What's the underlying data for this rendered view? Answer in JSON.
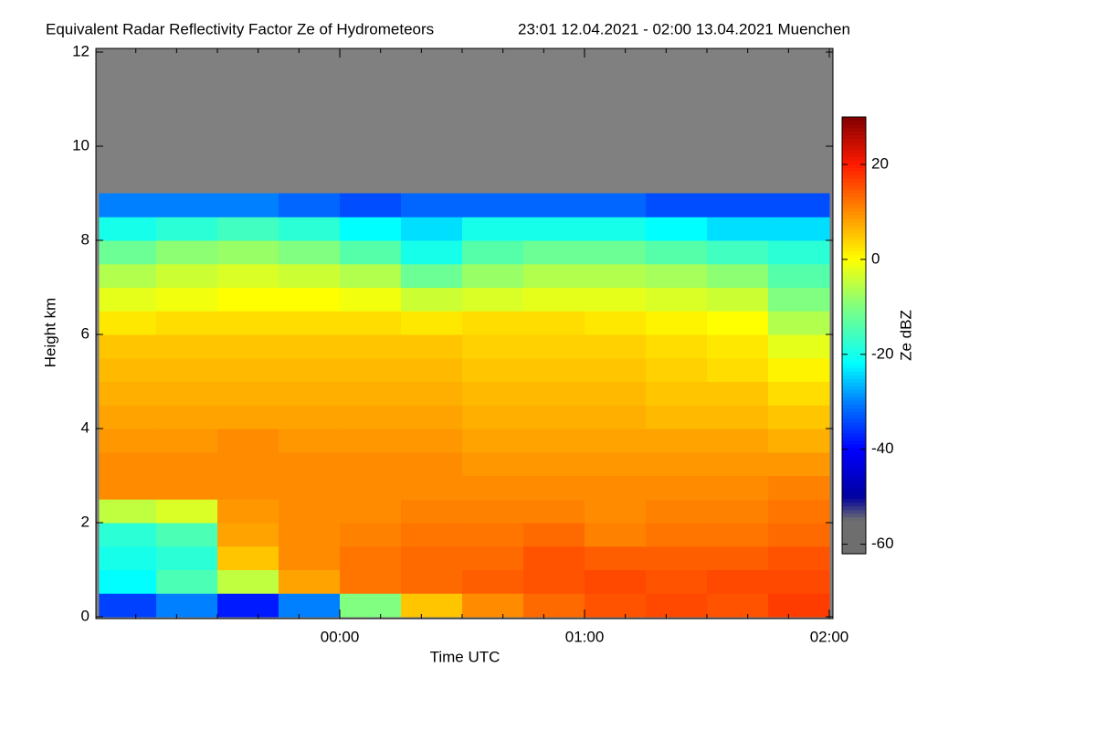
{
  "chart_data": {
    "type": "heatmap",
    "title": "Equivalent Radar Reflectivity Factor Ze of Hydrometeors",
    "subtitle": "23:01 12.04.2021 - 02:00 13.04.2021 Muenchen",
    "x_label": "Time UTC",
    "y_label": "Height km",
    "colorbar_label": "Ze dBZ",
    "xlim": [
      23.0167,
      26.0
    ],
    "xticks": [
      {
        "value": 24,
        "label": "00:00"
      },
      {
        "value": 25,
        "label": "01:00"
      },
      {
        "value": 26,
        "label": "02:00"
      }
    ],
    "xminorticks": [
      23.1667,
      23.3333,
      23.5,
      23.6667,
      23.8333,
      24.1667,
      24.3333,
      24.5,
      24.6667,
      24.8333,
      25.1667,
      25.3333,
      25.5,
      25.6667,
      25.8333
    ],
    "ylim": [
      0,
      12
    ],
    "yticks": [
      0,
      2,
      4,
      6,
      8,
      10,
      12
    ],
    "zlim": [
      -62,
      30
    ],
    "zticks": [
      -60,
      -40,
      -20,
      0,
      20
    ],
    "missing_color": "#808080",
    "colormap": [
      [
        -62,
        "#6e6e6e"
      ],
      [
        -55,
        "#6e6e6e"
      ],
      [
        -50,
        "#0000a0"
      ],
      [
        -40,
        "#0000ff"
      ],
      [
        -30,
        "#0080ff"
      ],
      [
        -22,
        "#00ffff"
      ],
      [
        -10,
        "#80ff80"
      ],
      [
        0,
        "#ffff00"
      ],
      [
        10,
        "#ff8c00"
      ],
      [
        20,
        "#ff1a00"
      ],
      [
        30,
        "#800000"
      ]
    ],
    "xbins": [
      23.0167,
      23.25,
      23.5,
      23.75,
      24.0,
      24.25,
      24.5,
      24.75,
      25.0,
      25.25,
      25.5,
      25.75,
      26.0
    ],
    "ybins": [
      0,
      0.5,
      1,
      1.5,
      2,
      2.5,
      3,
      3.5,
      4,
      4.5,
      5,
      5.5,
      6,
      6.5,
      7,
      7.5,
      8,
      8.5,
      9,
      9.5,
      10,
      10.5,
      11,
      11.5,
      12
    ],
    "z": [
      [
        -35,
        -30,
        -38,
        -30,
        -10,
        5,
        10,
        13,
        15,
        16,
        15,
        17
      ],
      [
        -22,
        -15,
        -5,
        8,
        12,
        13,
        14,
        15,
        16,
        15,
        16,
        16
      ],
      [
        -20,
        -18,
        5,
        10,
        12,
        13,
        13,
        15,
        14,
        14,
        14,
        15
      ],
      [
        -18,
        -15,
        8,
        10,
        11,
        12,
        12,
        13,
        11,
        12,
        12,
        13
      ],
      [
        -5,
        -3,
        9,
        10,
        10,
        11,
        11,
        11,
        10,
        11,
        11,
        12
      ],
      [
        10,
        10,
        10,
        10,
        10,
        10,
        10,
        10,
        10,
        10,
        10,
        11
      ],
      [
        10,
        10,
        10,
        10,
        10,
        10,
        9,
        9,
        9,
        9,
        9,
        9
      ],
      [
        9,
        9,
        10,
        9,
        9,
        9,
        8,
        8,
        8,
        8,
        8,
        7
      ],
      [
        8,
        8,
        8,
        8,
        8,
        8,
        7,
        7,
        7,
        6,
        6,
        5
      ],
      [
        7,
        7,
        7,
        7,
        7,
        7,
        6,
        6,
        6,
        5,
        5,
        3
      ],
      [
        6,
        6,
        6,
        6,
        6,
        6,
        5,
        5,
        5,
        4,
        3,
        1
      ],
      [
        5,
        5,
        5,
        5,
        5,
        5,
        4,
        4,
        4,
        3,
        2,
        -2
      ],
      [
        2,
        3,
        3,
        3,
        3,
        2,
        3,
        3,
        2,
        1,
        0,
        -6
      ],
      [
        -2,
        -1,
        0,
        0,
        -1,
        -4,
        -3,
        -2,
        -2,
        -3,
        -4,
        -10
      ],
      [
        -6,
        -4,
        -3,
        -4,
        -6,
        -12,
        -8,
        -6,
        -6,
        -7,
        -9,
        -14
      ],
      [
        -12,
        -9,
        -8,
        -10,
        -14,
        -20,
        -14,
        -12,
        -12,
        -14,
        -16,
        -18
      ],
      [
        -20,
        -18,
        -16,
        -18,
        -22,
        -24,
        -20,
        -20,
        -20,
        -22,
        -24,
        -24
      ],
      [
        -30,
        -30,
        -30,
        -32,
        -34,
        -32,
        -32,
        -32,
        -32,
        -34,
        -34,
        -34
      ],
      [
        null,
        null,
        null,
        null,
        null,
        null,
        null,
        null,
        null,
        null,
        null,
        null
      ],
      [
        null,
        null,
        null,
        null,
        null,
        null,
        null,
        null,
        null,
        null,
        null,
        null
      ],
      [
        null,
        null,
        null,
        null,
        null,
        null,
        null,
        null,
        null,
        null,
        null,
        null
      ],
      [
        null,
        null,
        null,
        null,
        null,
        null,
        null,
        null,
        null,
        null,
        null,
        null
      ],
      [
        null,
        null,
        null,
        null,
        null,
        null,
        null,
        null,
        null,
        null,
        null,
        null
      ],
      [
        null,
        null,
        null,
        null,
        null,
        null,
        null,
        null,
        null,
        null,
        null,
        null
      ]
    ]
  }
}
